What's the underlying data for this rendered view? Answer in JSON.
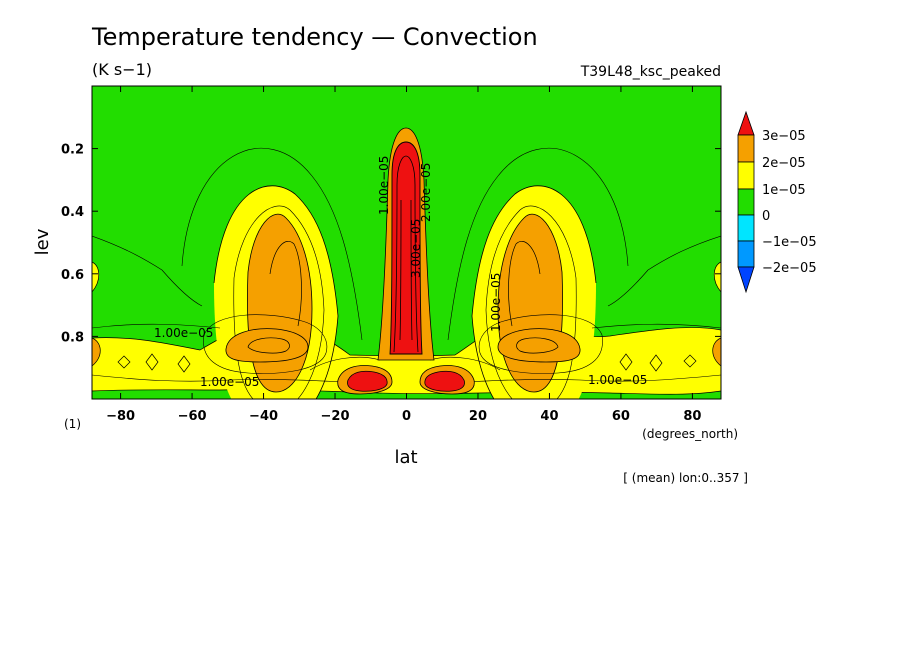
{
  "chart_data": {
    "type": "contour",
    "title": "Temperature tendency — Convection",
    "units": "(K s−1)",
    "run_label": "T39L48_ksc_peaked",
    "xlabel": "lat",
    "xunits": "(degrees_north)",
    "ylabel": "lev",
    "yunits": "(1)",
    "note": "[ (mean) lon:0..357 ]",
    "xlim": [
      -88,
      88
    ],
    "ylim": [
      1.0,
      0.0
    ],
    "x_ticks": [
      {
        "value": -80,
        "label": "−80"
      },
      {
        "value": -60,
        "label": "−60"
      },
      {
        "value": -40,
        "label": "−40"
      },
      {
        "value": -20,
        "label": "−20"
      },
      {
        "value": 0,
        "label": "0"
      },
      {
        "value": 20,
        "label": "20"
      },
      {
        "value": 40,
        "label": "40"
      },
      {
        "value": 60,
        "label": "60"
      },
      {
        "value": 80,
        "label": "80"
      }
    ],
    "y_ticks": [
      {
        "value": 0.2,
        "label": "0.2"
      },
      {
        "value": 0.4,
        "label": "0.4"
      },
      {
        "value": 0.6,
        "label": "0.6"
      },
      {
        "value": 0.8,
        "label": "0.8"
      }
    ],
    "colorbar": {
      "levels": [
        {
          "label": "3e−05",
          "value": 3e-05
        },
        {
          "label": "2e−05",
          "value": 2e-05
        },
        {
          "label": "1e−05",
          "value": 1e-05
        },
        {
          "label": "0",
          "value": 0
        },
        {
          "label": "−1e−05",
          "value": -1e-05
        },
        {
          "label": "−2e−05",
          "value": -2e-05
        }
      ],
      "colors": {
        "above_3e-5": "#ee1111",
        "2e-5_to_3e-5": "#f5a000",
        "1e-5_to_2e-5": "#ffff00",
        "0_to_1e-5": "#22dd00",
        "-1e-5_to_0": "#00e5ff",
        "-2e-5_to_-1e-5": "#0099ff",
        "below_-2e-5": "#0044ff"
      }
    },
    "contour_labels": [
      {
        "text": "1.00e−05"
      },
      {
        "text": "1.00e−05"
      },
      {
        "text": "1.00e−05"
      },
      {
        "text": "1.00e−05"
      },
      {
        "text": "1.00e−05"
      },
      {
        "text": "3.00e−05"
      },
      {
        "text": "2.00e−05"
      }
    ],
    "features": [
      {
        "name": "equatorial deep convection",
        "lat": 0,
        "lev_top": 0.19,
        "lev_bottom": 0.86,
        "max_value": 3e-05
      },
      {
        "name": "southern subtropical maximum",
        "lat": -33,
        "lev_top": 0.45,
        "lev_bottom": 0.7,
        "max_value": 2e-05
      },
      {
        "name": "northern subtropical maximum",
        "lat": 33,
        "lev_top": 0.45,
        "lev_bottom": 0.7,
        "max_value": 2e-05
      },
      {
        "name": "southern low-level maximum",
        "lat": -33,
        "lev_top": 0.78,
        "lev_bottom": 0.88,
        "max_value": 2e-05
      },
      {
        "name": "northern low-level maximum",
        "lat": 33,
        "lev_top": 0.78,
        "lev_bottom": 0.88,
        "max_value": 2e-05
      },
      {
        "name": "near-surface maxima",
        "lat": 10,
        "lev_top": 0.92,
        "lev_bottom": 0.98,
        "max_value": 3e-05
      }
    ],
    "grid": false
  }
}
